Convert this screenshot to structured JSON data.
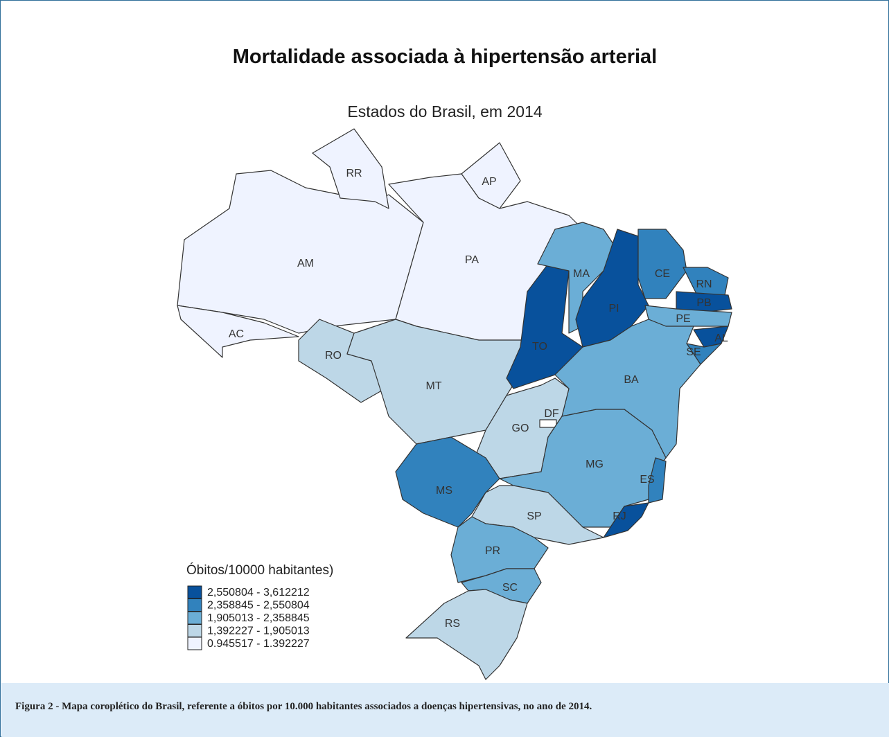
{
  "title": "Mortalidade associada à hipertensão arterial",
  "subtitle": "Estados do Brasil, em 2014",
  "states": [
    {
      "label": "AM",
      "color": "#eff3ff"
    },
    {
      "label": "RR",
      "color": "#eff3ff"
    },
    {
      "label": "AP",
      "color": "#eff3ff"
    },
    {
      "label": "PA",
      "color": "#eff3ff"
    },
    {
      "label": "AC",
      "color": "#eff3ff"
    },
    {
      "label": "RO",
      "color": "#bdd7e7"
    },
    {
      "label": "MT",
      "color": "#bdd7e7"
    },
    {
      "label": "TO",
      "color": "#08519c"
    },
    {
      "label": "MA",
      "color": "#6baed6"
    },
    {
      "label": "PI",
      "color": "#08519c"
    },
    {
      "label": "CE",
      "color": "#3182bd"
    },
    {
      "label": "RN",
      "color": "#3182bd"
    },
    {
      "label": "PB",
      "color": "#08519c"
    },
    {
      "label": "PE",
      "color": "#6baed6"
    },
    {
      "label": "AL",
      "color": "#08519c"
    },
    {
      "label": "SE",
      "color": "#3182bd"
    },
    {
      "label": "BA",
      "color": "#6baed6"
    },
    {
      "label": "GO",
      "color": "#bdd7e7"
    },
    {
      "label": "DF",
      "color": "#ffffff"
    },
    {
      "label": "MG",
      "color": "#6baed6"
    },
    {
      "label": "ES",
      "color": "#3182bd"
    },
    {
      "label": "RJ",
      "color": "#08519c"
    },
    {
      "label": "MS",
      "color": "#3182bd"
    },
    {
      "label": "SP",
      "color": "#bdd7e7"
    },
    {
      "label": "PR",
      "color": "#6baed6"
    },
    {
      "label": "SC",
      "color": "#6baed6"
    },
    {
      "label": "RS",
      "color": "#bdd7e7"
    }
  ],
  "legend": {
    "title": "Óbitos/10000 habitantes)",
    "items": [
      {
        "label": "2,550804 - 3,612212",
        "color": "#08519c"
      },
      {
        "label": "2,358845 - 2,550804",
        "color": "#3182bd"
      },
      {
        "label": "1,905013 - 2,358845",
        "color": "#6baed6"
      },
      {
        "label": "1,392227 - 1,905013",
        "color": "#bdd7e7"
      },
      {
        "label": "0.945517 - 1.392227",
        "color": "#eff3ff"
      }
    ]
  },
  "caption": "Figura 2 - Mapa coroplético do Brasil, referente a óbitos por 10.000 habitantes associados a doenças hipertensivas, no ano de 2014."
}
